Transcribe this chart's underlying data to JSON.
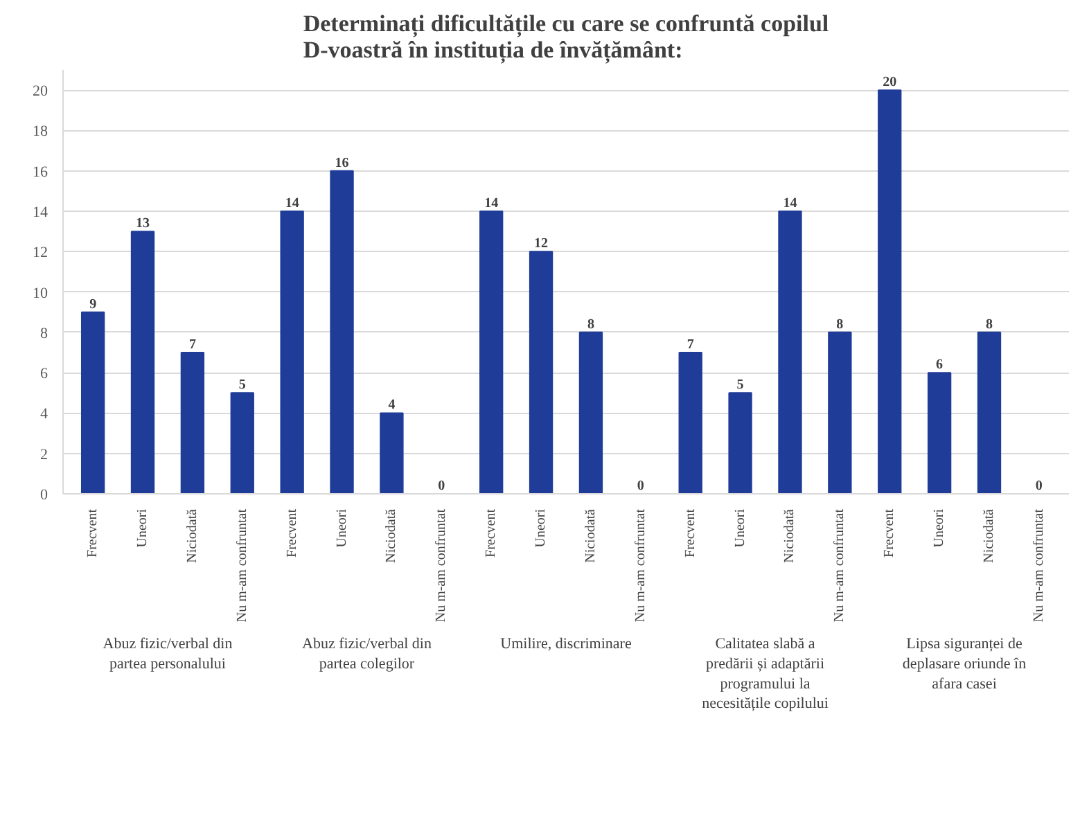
{
  "chart_data": {
    "type": "bar",
    "title": "Determinați dificultățile cu care se confruntă copilul D-voastră în instituția de învățământ:",
    "categories": [
      "Frecvent",
      "Uneori",
      "Niciodată",
      "Nu m-am confruntat",
      "Frecvent",
      "Uneori",
      "Niciodată",
      "Nu m-am confruntat",
      "Frecvent",
      "Uneori",
      "Niciodată",
      "Nu m-am confruntat",
      "Frecvent",
      "Uneori",
      "Niciodată",
      "Nu m-am confruntat",
      "Frecvent",
      "Uneori",
      "Niciodată",
      "Nu m-am confruntat"
    ],
    "values": [
      9,
      13,
      7,
      5,
      14,
      16,
      4,
      0,
      14,
      12,
      8,
      0,
      7,
      5,
      14,
      8,
      20,
      6,
      8,
      0
    ],
    "color": "#1f3c98",
    "ylim": [
      0,
      21
    ],
    "yticks": [
      0,
      2,
      4,
      6,
      8,
      10,
      12,
      14,
      16,
      18,
      20
    ],
    "grid": "y",
    "data_labels": true,
    "annotations": [
      "Abuz fizic/verbal din partea personalului",
      "Abuz fizic/verbal din partea colegilor",
      "Umilire, discriminare",
      "Calitatea slabă a predării și adaptării programului la necesitățile copilului",
      "Lipsa siguranței de deplasare oriunde în afara casei"
    ]
  }
}
